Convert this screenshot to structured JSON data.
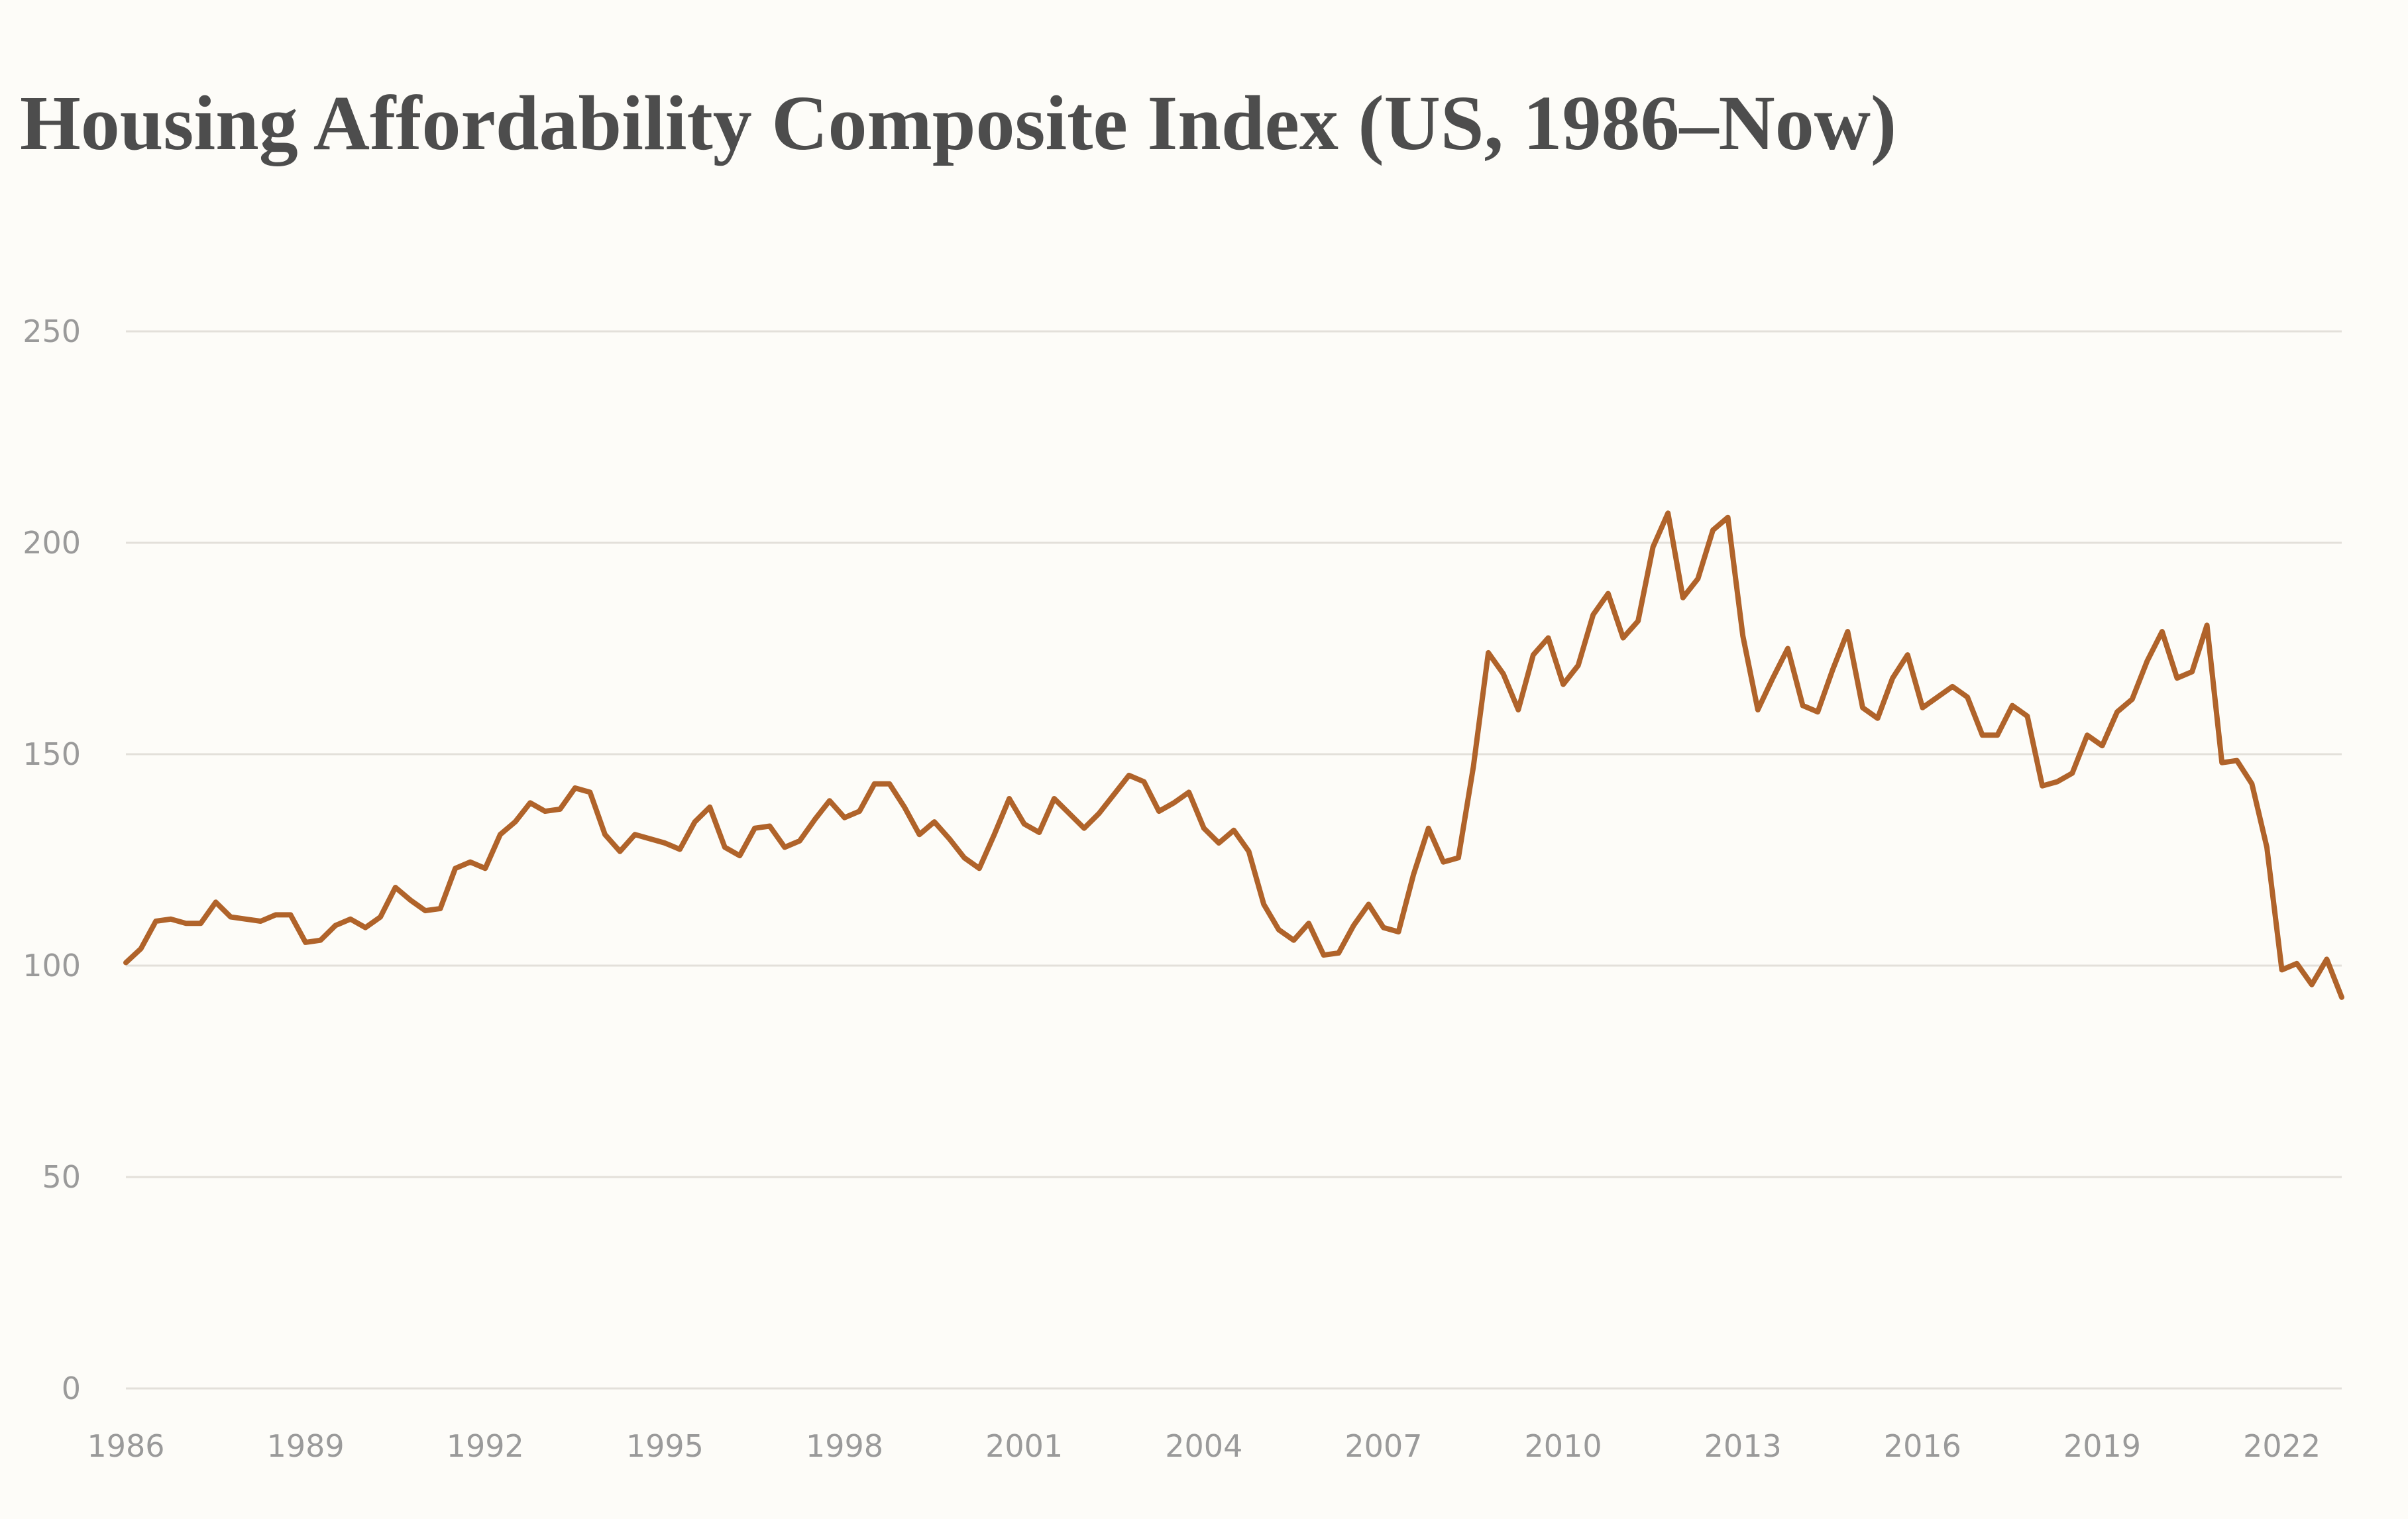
{
  "chart_data": {
    "type": "line",
    "title": "Housing Affordability Composite Index (US, 1986–Now)",
    "xlabel": "",
    "ylabel": "",
    "xlim": [
      1986,
      2023
    ],
    "ylim": [
      0,
      250
    ],
    "yticks": [
      0,
      50,
      100,
      150,
      200,
      250
    ],
    "xticks": [
      1986,
      1989,
      1992,
      1995,
      1998,
      2001,
      2004,
      2007,
      2010,
      2013,
      2016,
      2019,
      2022
    ],
    "grid": true,
    "legend": "none",
    "x_start": 1986,
    "x_step": 0.25,
    "series": [
      {
        "name": "Housing Affordability Composite Index",
        "color": "#b0632a",
        "values": [
          100.7,
          104,
          110.5,
          111,
          110,
          110,
          115,
          111.5,
          111,
          110.5,
          112,
          112,
          105.5,
          106,
          109.5,
          111,
          109,
          111.5,
          118.5,
          115.5,
          113,
          113.5,
          123,
          124.5,
          123,
          131,
          134,
          138.5,
          136.5,
          137,
          142,
          141,
          131,
          127,
          131,
          130,
          129,
          127.5,
          134,
          137.5,
          128,
          126,
          132.5,
          133,
          128,
          129.5,
          134.5,
          139,
          135,
          136.5,
          143,
          143,
          137.5,
          131,
          134,
          130,
          125.5,
          123,
          131,
          139.5,
          133.5,
          131.5,
          139.5,
          136,
          132.5,
          136,
          140.5,
          145,
          143.5,
          136.5,
          138.5,
          141,
          132.5,
          129,
          132,
          127,
          114.5,
          108.5,
          106,
          110,
          102.5,
          103,
          109.5,
          114.5,
          109,
          108,
          121.5,
          132.5,
          124.5,
          125.5,
          147,
          174,
          169,
          160.5,
          173.5,
          177.5,
          166.5,
          171,
          183,
          188,
          177.5,
          181.5,
          199,
          207,
          187,
          191.5,
          203,
          206,
          178,
          160.5,
          168,
          175,
          161.5,
          160,
          170,
          179,
          161,
          158.5,
          168,
          173.5,
          161,
          163.5,
          166,
          163.5,
          154.5,
          154.5,
          161.5,
          159,
          142.5,
          143.5,
          145.5,
          154.5,
          152,
          160,
          163,
          172,
          179,
          168,
          169.5,
          180.5,
          148,
          148.5,
          143,
          128,
          99,
          100.5,
          95.5,
          101.5,
          92.5
        ]
      }
    ]
  }
}
